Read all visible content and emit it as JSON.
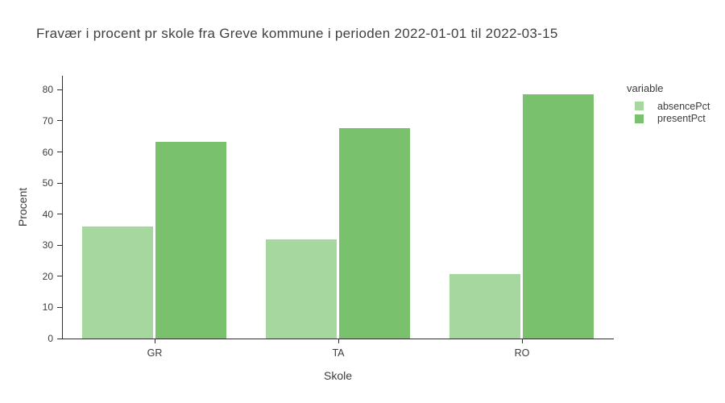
{
  "title": "Fravær i procent pr skole fra Greve kommune i perioden 2022-01-01 til 2022-03-15",
  "chart_data": {
    "type": "bar",
    "barmode": "group",
    "categories": [
      "GR",
      "TA",
      "RO"
    ],
    "series": [
      {
        "name": "absencePct",
        "color": "#a6d79f",
        "values": [
          36.4,
          32.1,
          21.1
        ]
      },
      {
        "name": "presentPct",
        "color": "#79c16d",
        "values": [
          63.6,
          67.9,
          78.9
        ]
      }
    ],
    "title": "Fravær i procent pr skole fra Greve kommune i perioden 2022-01-01 til 2022-03-15",
    "xlabel": "Skole",
    "ylabel": "Procent",
    "ylim": [
      0,
      84.5
    ],
    "yticks": [
      0,
      10,
      20,
      30,
      40,
      50,
      60,
      70,
      80
    ],
    "grid": false,
    "legend_title": "variable",
    "legend_position": "right"
  }
}
